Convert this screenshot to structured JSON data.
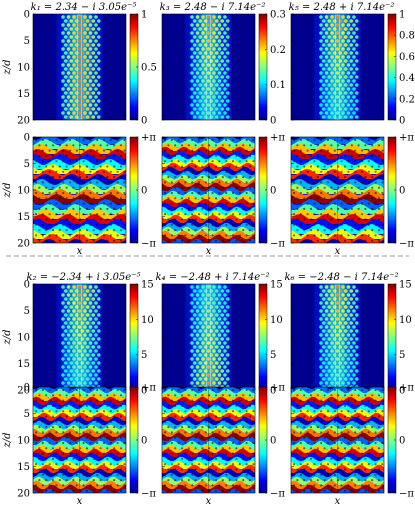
{
  "figure": {
    "top_group": {
      "titles": [
        "k₁ = 2.34 − i 3.05e⁻⁵",
        "k₃ = 2.48 − i 7.14e⁻²",
        "k₅ = 2.48 + i 7.14e⁻²"
      ],
      "intensity_colorbars": [
        [
          "1",
          "0.5",
          "0"
        ],
        [
          "0.3",
          "0.2",
          "0.1",
          "0"
        ],
        [
          "1",
          "0.8",
          "0.6",
          "0.4",
          "0.2",
          "0"
        ]
      ]
    },
    "bottom_group": {
      "titles": [
        "k₂ = −2.34 + i 3.05e⁻⁵",
        "k₄ = −2.48 + i 7.14e⁻²",
        "k₆ = −2.48 − i 7.14e⁻²"
      ],
      "intensity_colorbars": [
        [
          "15",
          "10",
          "5",
          "0"
        ],
        [
          "15",
          "10",
          "5",
          "0"
        ],
        [
          "15",
          "10",
          "5",
          "0"
        ]
      ]
    },
    "phase_colorbar_ticks": [
      "+π",
      "0",
      "−π"
    ],
    "y_ticks": [
      "0",
      "5",
      "10",
      "15",
      "20"
    ],
    "y_label": "z/d",
    "x_label": "x",
    "colormap": "jet"
  }
}
